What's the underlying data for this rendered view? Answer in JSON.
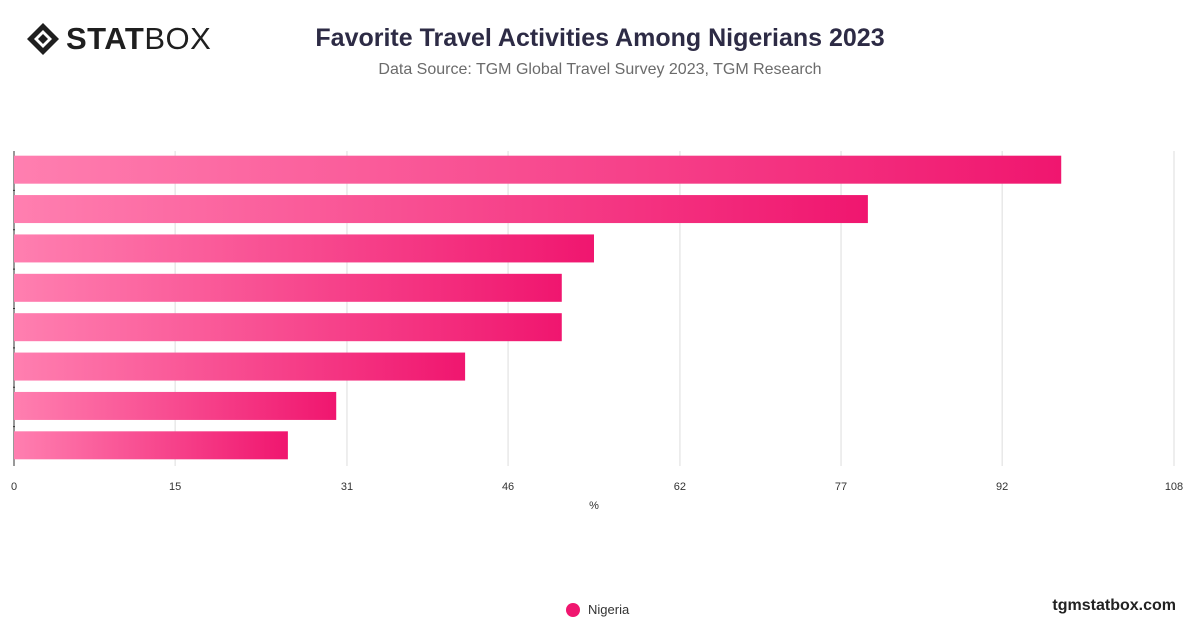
{
  "brand": {
    "logo_bold": "STAT",
    "logo_light": "BOX",
    "site": "tgmstatbox.com"
  },
  "header": {
    "title": "Favorite Travel Activities Among Nigerians 2023",
    "subtitle": "Data Source: TGM Global Travel Survey 2023, TGM Research"
  },
  "legend": {
    "label": "Nigeria",
    "color": "#f0166f"
  },
  "colors": {
    "bar_start": "#ff7fb0",
    "bar_end": "#f0166f",
    "grid": "#dddddd",
    "axis": "#333333"
  },
  "chart_data": {
    "type": "bar",
    "orientation": "horizontal",
    "categories": [
      "",
      "",
      "",
      "",
      "",
      "",
      "",
      ""
    ],
    "series": [
      {
        "name": "Nigeria",
        "values": [
          97.5,
          79.5,
          54,
          51,
          51,
          42,
          30,
          25.5
        ]
      }
    ],
    "xlabel": "%",
    "xlim": [
      0,
      108
    ],
    "xticks": [
      0,
      15,
      31,
      46,
      62,
      77,
      92,
      108
    ],
    "grid": true,
    "legend_position": "bottom-center"
  }
}
